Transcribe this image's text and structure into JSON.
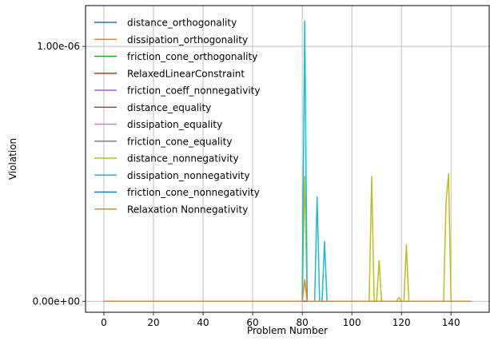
{
  "chart_data": {
    "type": "line",
    "title": "",
    "xlabel": "Problem Number",
    "ylabel": "Violation",
    "xlim": [
      -7.4,
      155.4
    ],
    "ylim": [
      -4.3e-08,
      1.16e-06
    ],
    "xticks": [
      0,
      20,
      40,
      60,
      80,
      100,
      120,
      140
    ],
    "xtick_labels": [
      "0",
      "20",
      "40",
      "60",
      "80",
      "100",
      "120",
      "140"
    ],
    "yticks": [
      0,
      1e-06
    ],
    "ytick_labels": [
      "0.00e+00",
      "1.00e-06"
    ],
    "grid": true,
    "legend_position": "top-left",
    "x_max": 148,
    "series": [
      {
        "name": "distance_orthogonality",
        "color": "#1f77b4",
        "points": []
      },
      {
        "name": "dissipation_orthogonality",
        "color": "#ff7f0e",
        "points": []
      },
      {
        "name": "friction_cone_orthogonality",
        "color": "#2ca02c",
        "points": []
      },
      {
        "name": "RelaxedLinearConstraint",
        "color": "#d62728",
        "points": []
      },
      {
        "name": "friction_coeff_nonnegativity",
        "color": "#9467bd",
        "points": []
      },
      {
        "name": "distance_equality",
        "color": "#8c564b",
        "points": []
      },
      {
        "name": "dissipation_equality",
        "color": "#e377c2",
        "points": []
      },
      {
        "name": "friction_cone_equality",
        "color": "#7f7f7f",
        "points": []
      },
      {
        "name": "distance_nonnegativity",
        "color": "#bcbd22",
        "points": [
          [
            80,
            0
          ],
          [
            81,
            4.9e-07
          ],
          [
            82,
            0
          ],
          [
            107,
            0
          ],
          [
            108,
            4.9e-07
          ],
          [
            109,
            0
          ],
          [
            110,
            0
          ],
          [
            111,
            1.6e-07
          ],
          [
            112,
            0
          ],
          [
            118,
            0
          ],
          [
            119,
            1.5e-08
          ],
          [
            120,
            0
          ],
          [
            121,
            0
          ],
          [
            122,
            2.2e-07
          ],
          [
            123,
            0
          ],
          [
            137,
            0
          ],
          [
            138,
            3.9e-07
          ],
          [
            139,
            5e-07
          ],
          [
            140,
            0
          ]
        ]
      },
      {
        "name": "dissipation_nonnegativity",
        "color": "#17becf",
        "points": [
          [
            79,
            0
          ],
          [
            80,
            0
          ],
          [
            81,
            1.1e-06
          ],
          [
            82,
            0
          ],
          [
            85,
            0
          ],
          [
            86,
            4.1e-07
          ],
          [
            87,
            0
          ],
          [
            88,
            0
          ],
          [
            89,
            2.35e-07
          ],
          [
            90,
            0
          ]
        ]
      },
      {
        "name": "friction_cone_nonnegativity",
        "color": "#1f77b4",
        "points": []
      },
      {
        "name": "Relaxation Nonnegativity",
        "color": "#ff7f0e",
        "points": [
          [
            80,
            0
          ],
          [
            81,
            8.5e-08
          ],
          [
            82,
            0
          ]
        ]
      }
    ]
  }
}
